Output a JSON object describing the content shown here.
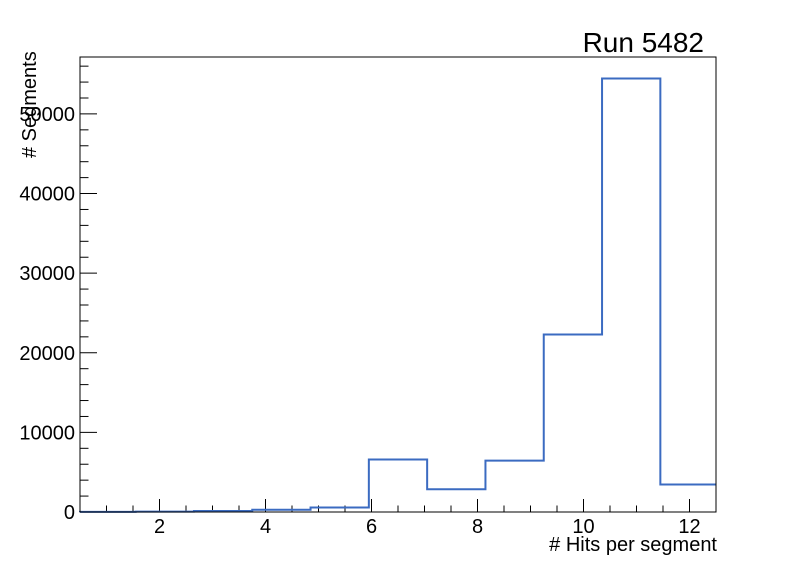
{
  "chart_data": {
    "type": "histogram-step",
    "title": "Run 5482",
    "xlabel": "# Hits per segment",
    "ylabel": "# Segments",
    "xlim": [
      0.5,
      12.5
    ],
    "ylim": [
      0,
      57150
    ],
    "bin_edges": [
      0.45,
      1.55,
      2.65,
      3.75,
      4.85,
      5.95,
      7.05,
      8.15,
      9.25,
      10.35,
      11.45,
      12.55
    ],
    "counts": [
      15,
      40,
      120,
      280,
      570,
      6600,
      2850,
      6450,
      22300,
      54450,
      3450
    ],
    "x_major_ticks": [
      2,
      4,
      6,
      8,
      10,
      12
    ],
    "x_minor_step": 0.5,
    "y_major_ticks": [
      0,
      10000,
      20000,
      30000,
      40000,
      50000
    ],
    "y_minor_step": 2000,
    "legend": "none",
    "grid": false,
    "ticks_position": "inside-bottom-left",
    "colors": {
      "line": "#3b6bc1",
      "axis": "#000000",
      "background": "#ffffff",
      "text": "#000000"
    }
  }
}
